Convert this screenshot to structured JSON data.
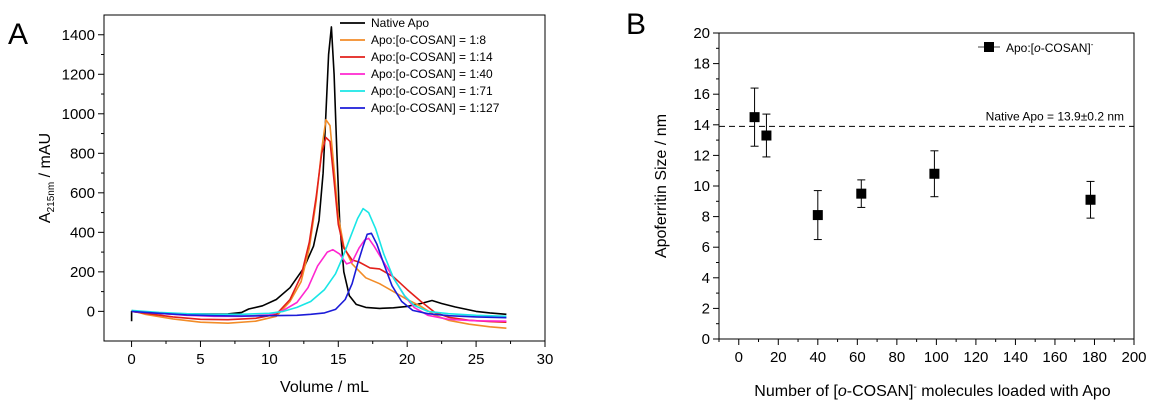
{
  "panels": {
    "a": {
      "letter": "A"
    },
    "b": {
      "letter": "B"
    }
  },
  "chart_data": [
    {
      "type": "line",
      "panel": "A",
      "xlabel": "Volume / mL",
      "ylabel_main": "A",
      "ylabel_sub": "215nm",
      "ylabel_rest": " / mAU",
      "xlim": [
        -2,
        30
      ],
      "ylim": [
        -150,
        1500
      ],
      "xticks": [
        0,
        5,
        10,
        15,
        20,
        25,
        30
      ],
      "yticks": [
        0,
        200,
        400,
        600,
        800,
        1000,
        1200,
        1400
      ],
      "legend_position": "top-right",
      "series": [
        {
          "name": "Native Apo",
          "color": "#000000",
          "points": [
            [
              0,
              -50
            ],
            [
              0,
              0
            ],
            [
              1,
              -8
            ],
            [
              3,
              -12
            ],
            [
              5,
              -14
            ],
            [
              7,
              -13
            ],
            [
              8,
              -5
            ],
            [
              8.5,
              12
            ],
            [
              9.5,
              28
            ],
            [
              10.5,
              60
            ],
            [
              11.5,
              120
            ],
            [
              12.5,
              220
            ],
            [
              13.2,
              330
            ],
            [
              13.6,
              460
            ],
            [
              13.9,
              700
            ],
            [
              14.1,
              1000
            ],
            [
              14.3,
              1300
            ],
            [
              14.5,
              1440
            ],
            [
              14.7,
              1200
            ],
            [
              14.9,
              800
            ],
            [
              15.1,
              450
            ],
            [
              15.4,
              200
            ],
            [
              15.8,
              80
            ],
            [
              16.3,
              35
            ],
            [
              17,
              20
            ],
            [
              18,
              15
            ],
            [
              19,
              18
            ],
            [
              20,
              25
            ],
            [
              21,
              40
            ],
            [
              21.8,
              55
            ],
            [
              22.5,
              40
            ],
            [
              23.5,
              22
            ],
            [
              25,
              0
            ],
            [
              26,
              -8
            ],
            [
              27.2,
              -15
            ]
          ]
        },
        {
          "name": "Apo:[o-COSAN] = 1:8",
          "color": "#f28c28",
          "points": [
            [
              0,
              5
            ],
            [
              1,
              -15
            ],
            [
              3,
              -38
            ],
            [
              5,
              -55
            ],
            [
              7,
              -60
            ],
            [
              9,
              -50
            ],
            [
              10.5,
              -25
            ],
            [
              11.5,
              50
            ],
            [
              12.3,
              150
            ],
            [
              12.9,
              320
            ],
            [
              13.4,
              560
            ],
            [
              13.8,
              820
            ],
            [
              14.1,
              970
            ],
            [
              14.4,
              940
            ],
            [
              14.7,
              720
            ],
            [
              15,
              480
            ],
            [
              15.4,
              330
            ],
            [
              16,
              240
            ],
            [
              17,
              170
            ],
            [
              18,
              140
            ],
            [
              19,
              100
            ],
            [
              20,
              60
            ],
            [
              21,
              25
            ],
            [
              22,
              -20
            ],
            [
              23,
              -45
            ],
            [
              24.5,
              -65
            ],
            [
              26,
              -78
            ],
            [
              27.2,
              -85
            ]
          ]
        },
        {
          "name": "Apo:[o-COSAN] = 1:14",
          "color": "#e3201b",
          "points": [
            [
              0,
              0
            ],
            [
              1,
              -10
            ],
            [
              3,
              -28
            ],
            [
              5,
              -40
            ],
            [
              7,
              -42
            ],
            [
              9,
              -35
            ],
            [
              10.5,
              -15
            ],
            [
              11.5,
              60
            ],
            [
              12.3,
              180
            ],
            [
              12.9,
              350
            ],
            [
              13.4,
              580
            ],
            [
              13.8,
              800
            ],
            [
              14.1,
              880
            ],
            [
              14.4,
              860
            ],
            [
              14.7,
              660
            ],
            [
              15,
              440
            ],
            [
              15.4,
              320
            ],
            [
              16,
              260
            ],
            [
              16.5,
              250
            ],
            [
              17.3,
              220
            ],
            [
              18,
              215
            ],
            [
              19,
              175
            ],
            [
              20,
              110
            ],
            [
              21,
              50
            ],
            [
              22,
              -5
            ],
            [
              23,
              -30
            ],
            [
              24.5,
              -45
            ],
            [
              26,
              -52
            ],
            [
              27.2,
              -55
            ]
          ]
        },
        {
          "name": "Apo:[o-COSAN] = 1:40",
          "color": "#ff27d0",
          "points": [
            [
              0,
              0
            ],
            [
              2,
              -10
            ],
            [
              4,
              -20
            ],
            [
              6,
              -25
            ],
            [
              8,
              -25
            ],
            [
              10,
              -18
            ],
            [
              11,
              5
            ],
            [
              12,
              45
            ],
            [
              12.8,
              120
            ],
            [
              13.5,
              230
            ],
            [
              14.2,
              300
            ],
            [
              14.6,
              312
            ],
            [
              15.1,
              290
            ],
            [
              15.6,
              240
            ],
            [
              16,
              250
            ],
            [
              16.5,
              320
            ],
            [
              16.9,
              360
            ],
            [
              17.2,
              370
            ],
            [
              17.6,
              330
            ],
            [
              18.2,
              260
            ],
            [
              19,
              170
            ],
            [
              19.8,
              80
            ],
            [
              20.5,
              20
            ],
            [
              21.5,
              -20
            ],
            [
              23,
              -40
            ],
            [
              25,
              -48
            ],
            [
              27.2,
              -50
            ]
          ]
        },
        {
          "name": "Apo:[o-COSAN] = 1:71",
          "color": "#19e6e6",
          "points": [
            [
              0,
              5
            ],
            [
              2,
              -5
            ],
            [
              4,
              -12
            ],
            [
              6,
              -15
            ],
            [
              8,
              -15
            ],
            [
              10,
              -10
            ],
            [
              11,
              0
            ],
            [
              12,
              20
            ],
            [
              13,
              50
            ],
            [
              14,
              110
            ],
            [
              14.8,
              190
            ],
            [
              15.3,
              270
            ],
            [
              15.9,
              380
            ],
            [
              16.4,
              470
            ],
            [
              16.8,
              520
            ],
            [
              17.2,
              500
            ],
            [
              17.7,
              420
            ],
            [
              18.3,
              290
            ],
            [
              19,
              170
            ],
            [
              19.8,
              80
            ],
            [
              20.5,
              30
            ],
            [
              21.5,
              0
            ],
            [
              23,
              -12
            ],
            [
              25,
              -20
            ],
            [
              27.2,
              -25
            ]
          ]
        },
        {
          "name": "Apo:[o-COSAN] = 1:127",
          "color": "#1c1cd8",
          "points": [
            [
              0,
              0
            ],
            [
              2,
              -10
            ],
            [
              4,
              -18
            ],
            [
              6,
              -22
            ],
            [
              8,
              -24
            ],
            [
              10,
              -22
            ],
            [
              12,
              -20
            ],
            [
              13,
              -15
            ],
            [
              14,
              -8
            ],
            [
              14.8,
              10
            ],
            [
              15.5,
              60
            ],
            [
              16,
              140
            ],
            [
              16.4,
              240
            ],
            [
              16.8,
              330
            ],
            [
              17.1,
              390
            ],
            [
              17.4,
              395
            ],
            [
              17.8,
              340
            ],
            [
              18.3,
              240
            ],
            [
              18.9,
              130
            ],
            [
              19.6,
              50
            ],
            [
              20.4,
              5
            ],
            [
              21.5,
              -12
            ],
            [
              23,
              -22
            ],
            [
              25,
              -28
            ],
            [
              27.2,
              -32
            ]
          ]
        }
      ]
    },
    {
      "type": "scatter",
      "panel": "B",
      "xlabel_pre": "Number of [",
      "xlabel_italic": "o",
      "xlabel_mid": "-COSAN]",
      "xlabel_sup": "-",
      "xlabel_post": " molecules loaded with Apo",
      "ylabel": "Apoferritin Size / nm",
      "xlim": [
        -10,
        200
      ],
      "ylim": [
        0,
        20
      ],
      "xticks": [
        0,
        20,
        40,
        60,
        80,
        100,
        120,
        140,
        160,
        180,
        200
      ],
      "yticks": [
        0,
        2,
        4,
        6,
        8,
        10,
        12,
        14,
        16,
        18,
        20
      ],
      "legend_position": "top-right",
      "series": [
        {
          "name_pre": "Apo:[",
          "name_italic": "o",
          "name_post": "-COSAN]",
          "name_sup": "-",
          "color": "#000000",
          "x": [
            8,
            14,
            40,
            62,
            99,
            178
          ],
          "y": [
            14.5,
            13.3,
            8.1,
            9.5,
            10.8,
            9.1
          ],
          "error": [
            1.9,
            1.4,
            1.6,
            0.9,
            1.5,
            1.2
          ]
        }
      ],
      "reference_line": {
        "y": 13.9,
        "label": "Native Apo = 13.9±0.2 nm"
      }
    }
  ]
}
